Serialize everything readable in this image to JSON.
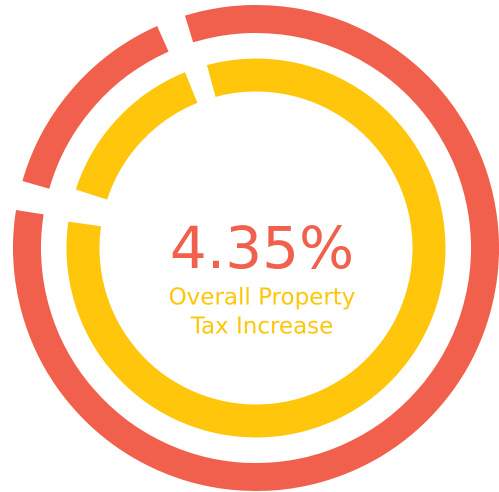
{
  "headline": {
    "value": "4.35%",
    "label_lines": [
      "Overall Property",
      "Tax Increase"
    ]
  }
}
